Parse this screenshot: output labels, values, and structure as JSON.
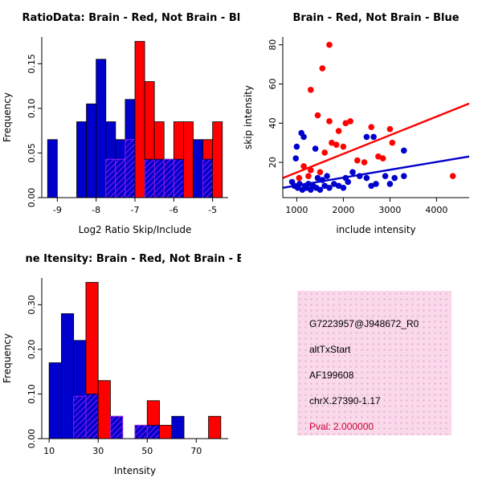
{
  "page": {
    "background": "#ffffff"
  },
  "colors": {
    "red": "#ff0000",
    "blue": "#0000cd",
    "purple": "#a020f0",
    "axis": "#000000"
  },
  "chart_data": [
    {
      "type": "bar",
      "id": "log-ratio-histogram",
      "title": "RatioData: Brain - Red, Not Brain - Blu",
      "xlabel": "Log2 Ratio Skip/Include",
      "ylabel": "Frequency",
      "xlim": [
        -9.4,
        -4.6
      ],
      "ylim": [
        0,
        0.18
      ],
      "xticks": [
        -9,
        -8,
        -7,
        -6,
        -5
      ],
      "xtick_labels": [
        "-9",
        "-8",
        "-7",
        "-6",
        "-5"
      ],
      "yticks": [
        0,
        0.05,
        0.1,
        0.15
      ],
      "ytick_labels": [
        "0.00",
        "0.05",
        "0.10",
        "0.15"
      ],
      "bin_start": -9.25,
      "bin_width": 0.25,
      "series": [
        {
          "name": "Not Brain",
          "color": "blue",
          "values": [
            0.065,
            0,
            0,
            0.085,
            0.105,
            0.155,
            0.085,
            0.065,
            0.11,
            0,
            0.043,
            0.043,
            0.043,
            0.043,
            0,
            0.065,
            0.043,
            0
          ]
        },
        {
          "name": "Brain",
          "color": "red",
          "values": [
            0,
            0,
            0,
            0,
            0,
            0,
            0.043,
            0.043,
            0.065,
            0.175,
            0.13,
            0.085,
            0.043,
            0.085,
            0.085,
            0,
            0.065,
            0.085
          ]
        }
      ]
    },
    {
      "type": "scatter",
      "id": "intensity-scatter",
      "title": "Brain - Red, Not Brain - Blue",
      "xlabel": "include intensity",
      "ylabel": "skip intensity",
      "xlim": [
        700,
        4700
      ],
      "ylim": [
        2,
        84
      ],
      "xticks": [
        1000,
        2000,
        3000,
        4000
      ],
      "xtick_labels": [
        "1000",
        "2000",
        "3000",
        "4000"
      ],
      "yticks": [
        20,
        40,
        60,
        80
      ],
      "ytick_labels": [
        "20",
        "40",
        "60",
        "80"
      ],
      "series": [
        {
          "name": "Not Brain",
          "color": "blue",
          "points": [
            [
              900,
              10
            ],
            [
              950,
              8
            ],
            [
              980,
              22
            ],
            [
              1000,
              28
            ],
            [
              1020,
              7
            ],
            [
              1060,
              9
            ],
            [
              1100,
              35
            ],
            [
              1120,
              6
            ],
            [
              1150,
              33
            ],
            [
              1180,
              8
            ],
            [
              1200,
              7
            ],
            [
              1250,
              9
            ],
            [
              1300,
              6
            ],
            [
              1350,
              8
            ],
            [
              1400,
              27
            ],
            [
              1420,
              7
            ],
            [
              1450,
              12
            ],
            [
              1500,
              6
            ],
            [
              1550,
              11
            ],
            [
              1600,
              8
            ],
            [
              1650,
              13
            ],
            [
              1700,
              7
            ],
            [
              1800,
              9
            ],
            [
              1900,
              8
            ],
            [
              2000,
              7
            ],
            [
              2050,
              12
            ],
            [
              2100,
              10
            ],
            [
              2200,
              15
            ],
            [
              2350,
              13
            ],
            [
              2500,
              33
            ],
            [
              2500,
              12
            ],
            [
              2600,
              8
            ],
            [
              2650,
              33
            ],
            [
              2700,
              9
            ],
            [
              2900,
              13
            ],
            [
              3000,
              9
            ],
            [
              3100,
              12
            ],
            [
              3300,
              26
            ],
            [
              3300,
              13
            ]
          ]
        },
        {
          "name": "Brain",
          "color": "red",
          "points": [
            [
              1700,
              80
            ],
            [
              1550,
              68
            ],
            [
              1300,
              57
            ],
            [
              1450,
              44
            ],
            [
              1700,
              41
            ],
            [
              2050,
              40
            ],
            [
              2150,
              41
            ],
            [
              1900,
              36
            ],
            [
              2600,
              38
            ],
            [
              3000,
              37
            ],
            [
              1750,
              30
            ],
            [
              1850,
              29
            ],
            [
              2000,
              28
            ],
            [
              1600,
              25
            ],
            [
              3050,
              30
            ],
            [
              2750,
              23
            ],
            [
              2850,
              22
            ],
            [
              1150,
              18
            ],
            [
              1300,
              16
            ],
            [
              1500,
              15
            ],
            [
              2300,
              21
            ],
            [
              2450,
              20
            ],
            [
              4350,
              13
            ],
            [
              1050,
              12
            ],
            [
              1250,
              13
            ]
          ]
        }
      ],
      "lines": [
        {
          "color": "red",
          "x1": 700,
          "y1": 12,
          "x2": 4700,
          "y2": 50
        },
        {
          "color": "blue",
          "x1": 700,
          "y1": 7,
          "x2": 4700,
          "y2": 23
        }
      ]
    },
    {
      "type": "bar",
      "id": "gene-intensity-histogram",
      "title": "ne Itensity: Brain - Red, Not Brain - B",
      "xlabel": "Intensity",
      "ylabel": "Frequency",
      "xlim": [
        7,
        83
      ],
      "ylim": [
        0,
        0.36
      ],
      "xticks": [
        10,
        30,
        50,
        70
      ],
      "xtick_labels": [
        "10",
        "30",
        "50",
        "70"
      ],
      "yticks": [
        0,
        0.1,
        0.2,
        0.3
      ],
      "ytick_labels": [
        "0.00",
        "0.10",
        "0.20",
        "0.30"
      ],
      "bin_start": 10,
      "bin_width": 5,
      "series": [
        {
          "name": "Not Brain",
          "color": "blue",
          "values": [
            0.17,
            0.28,
            0.22,
            0.1,
            0,
            0.05,
            0,
            0.03,
            0.03,
            0,
            0.05,
            0,
            0,
            0
          ]
        },
        {
          "name": "Brain",
          "color": "red",
          "values": [
            0,
            0,
            0.095,
            0.35,
            0.13,
            0.05,
            0,
            0.03,
            0.085,
            0.03,
            0,
            0,
            0,
            0.05
          ]
        }
      ]
    }
  ],
  "info_box": {
    "lines": [
      "G7223957@J948672_R0",
      "altTxStart",
      "AF199608",
      "chrX.27390-1.17"
    ],
    "pval": "Pval: 2.000000",
    "bg": "#f9d9ea",
    "dot": "#e7abd2",
    "pval_color": "#cc0033"
  }
}
